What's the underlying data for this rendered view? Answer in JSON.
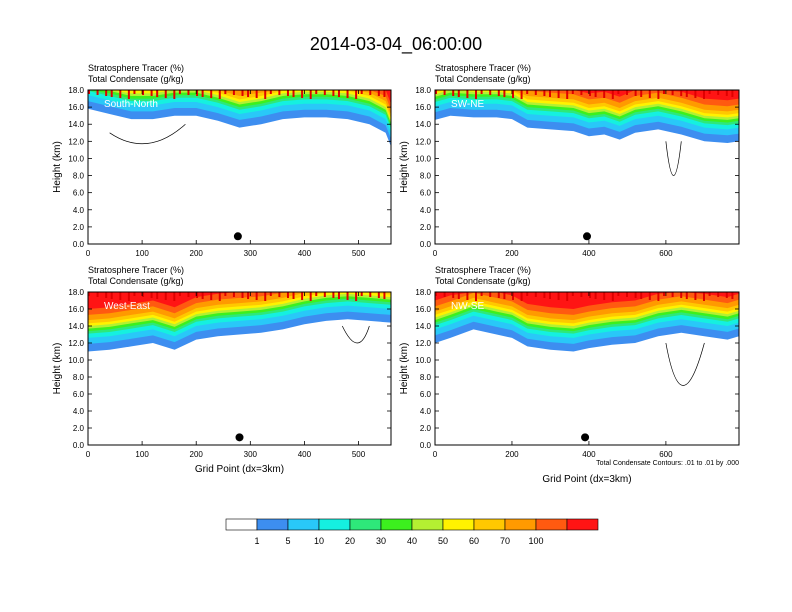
{
  "figure": {
    "title": "2014-03-04_06:00:00",
    "colors": {
      "background": "#ffffff",
      "frame": "#000000",
      "contour": "#000000"
    }
  },
  "chart_data": [
    {
      "type": "heatmap",
      "panel_label": "South-North",
      "title_line1": "Stratosphere Tracer   (%)",
      "title_line2": "Total Condensate   (g/kg)",
      "ylabel": "Height (km)",
      "xlabel": "",
      "xlim": [
        0,
        560
      ],
      "ylim": [
        0,
        18
      ],
      "x_ticks": [
        0,
        100,
        200,
        300,
        400,
        500
      ],
      "y_ticks": [
        "0.0",
        "2.0",
        "4.0",
        "6.0",
        "8.0",
        "10.0",
        "12.0",
        "14.0",
        "16.0",
        "18.0"
      ],
      "tracer_bottom_km": [
        [
          0,
          15.8
        ],
        [
          40,
          15.2
        ],
        [
          80,
          14.6
        ],
        [
          120,
          14.6
        ],
        [
          160,
          15.0
        ],
        [
          200,
          15.0
        ],
        [
          240,
          14.4
        ],
        [
          280,
          13.6
        ],
        [
          320,
          14.0
        ],
        [
          360,
          14.6
        ],
        [
          400,
          14.8
        ],
        [
          440,
          14.8
        ],
        [
          480,
          14.6
        ],
        [
          520,
          14.0
        ],
        [
          550,
          13.0
        ],
        [
          560,
          11.4
        ]
      ],
      "storm_marker": [
        277,
        0.9
      ],
      "note": ""
    },
    {
      "type": "heatmap",
      "panel_label": "SW-NE",
      "title_line1": "Stratosphere Tracer   (%)",
      "title_line2": "Total Condensate   (g/kg)",
      "ylabel": "Height (km)",
      "xlabel": "",
      "xlim": [
        0,
        790
      ],
      "ylim": [
        0,
        18
      ],
      "x_ticks": [
        0,
        200,
        400,
        600
      ],
      "y_ticks": [
        "0.0",
        "2.0",
        "4.0",
        "6.0",
        "8.0",
        "10.0",
        "12.0",
        "14.0",
        "16.0",
        "18.0"
      ],
      "tracer_bottom_km": [
        [
          0,
          14.5
        ],
        [
          40,
          15.0
        ],
        [
          100,
          14.8
        ],
        [
          160,
          14.8
        ],
        [
          200,
          14.6
        ],
        [
          240,
          13.6
        ],
        [
          300,
          13.4
        ],
        [
          360,
          13.2
        ],
        [
          400,
          12.6
        ],
        [
          440,
          12.8
        ],
        [
          480,
          12.2
        ],
        [
          520,
          13.0
        ],
        [
          580,
          13.4
        ],
        [
          640,
          12.8
        ],
        [
          700,
          12.0
        ],
        [
          760,
          11.8
        ],
        [
          790,
          12.0
        ]
      ],
      "storm_marker": [
        395,
        0.9
      ],
      "note": ""
    },
    {
      "type": "heatmap",
      "panel_label": "West-East",
      "title_line1": "Stratosphere Tracer   (%)",
      "title_line2": "Total Condensate   (g/kg)",
      "ylabel": "Height (km)",
      "xlabel": "Grid Point (dx=3km)",
      "xlim": [
        0,
        560
      ],
      "ylim": [
        0,
        18
      ],
      "x_ticks": [
        0,
        100,
        200,
        300,
        400,
        500
      ],
      "y_ticks": [
        "0.0",
        "2.0",
        "4.0",
        "6.0",
        "8.0",
        "10.0",
        "12.0",
        "14.0",
        "16.0",
        "18.0"
      ],
      "tracer_bottom_km": [
        [
          0,
          11.0
        ],
        [
          40,
          11.2
        ],
        [
          80,
          11.6
        ],
        [
          120,
          12.0
        ],
        [
          160,
          11.2
        ],
        [
          200,
          12.4
        ],
        [
          240,
          12.8
        ],
        [
          280,
          13.0
        ],
        [
          320,
          13.2
        ],
        [
          360,
          13.6
        ],
        [
          400,
          14.2
        ],
        [
          440,
          14.6
        ],
        [
          480,
          14.8
        ],
        [
          520,
          14.6
        ],
        [
          560,
          14.4
        ]
      ],
      "storm_marker": [
        280,
        0.9
      ],
      "note": ""
    },
    {
      "type": "heatmap",
      "panel_label": "NW-SE",
      "title_line1": "Stratosphere Tracer   (%)",
      "title_line2": "Total Condensate   (g/kg)",
      "ylabel": "Height (km)",
      "xlabel": "Grid Point (dx=3km)",
      "xlim": [
        0,
        790
      ],
      "ylim": [
        0,
        18
      ],
      "x_ticks": [
        0,
        200,
        400,
        600
      ],
      "y_ticks": [
        "0.0",
        "2.0",
        "4.0",
        "6.0",
        "8.0",
        "10.0",
        "12.0",
        "14.0",
        "16.0",
        "18.0"
      ],
      "tracer_bottom_km": [
        [
          0,
          12.0
        ],
        [
          40,
          12.6
        ],
        [
          100,
          13.6
        ],
        [
          160,
          13.0
        ],
        [
          200,
          12.6
        ],
        [
          240,
          11.6
        ],
        [
          300,
          11.2
        ],
        [
          360,
          11.0
        ],
        [
          400,
          11.4
        ],
        [
          460,
          11.8
        ],
        [
          520,
          12.0
        ],
        [
          580,
          12.8
        ],
        [
          640,
          13.2
        ],
        [
          700,
          12.8
        ],
        [
          760,
          12.4
        ],
        [
          790,
          12.8
        ]
      ],
      "storm_marker": [
        390,
        0.9
      ],
      "note": "Total Condensate Contours: .01 to .01 by .000"
    }
  ],
  "colorbar": {
    "labels": [
      "1",
      "5",
      "10",
      "20",
      "30",
      "40",
      "50",
      "60",
      "70",
      "100"
    ],
    "colors": [
      "#ffffff",
      "#3d8ef0",
      "#29c8f8",
      "#15f0e0",
      "#2ee87a",
      "#3cf01e",
      "#b4f032",
      "#fff200",
      "#ffc800",
      "#ff9a00",
      "#ff5a10",
      "#ff1414"
    ]
  }
}
